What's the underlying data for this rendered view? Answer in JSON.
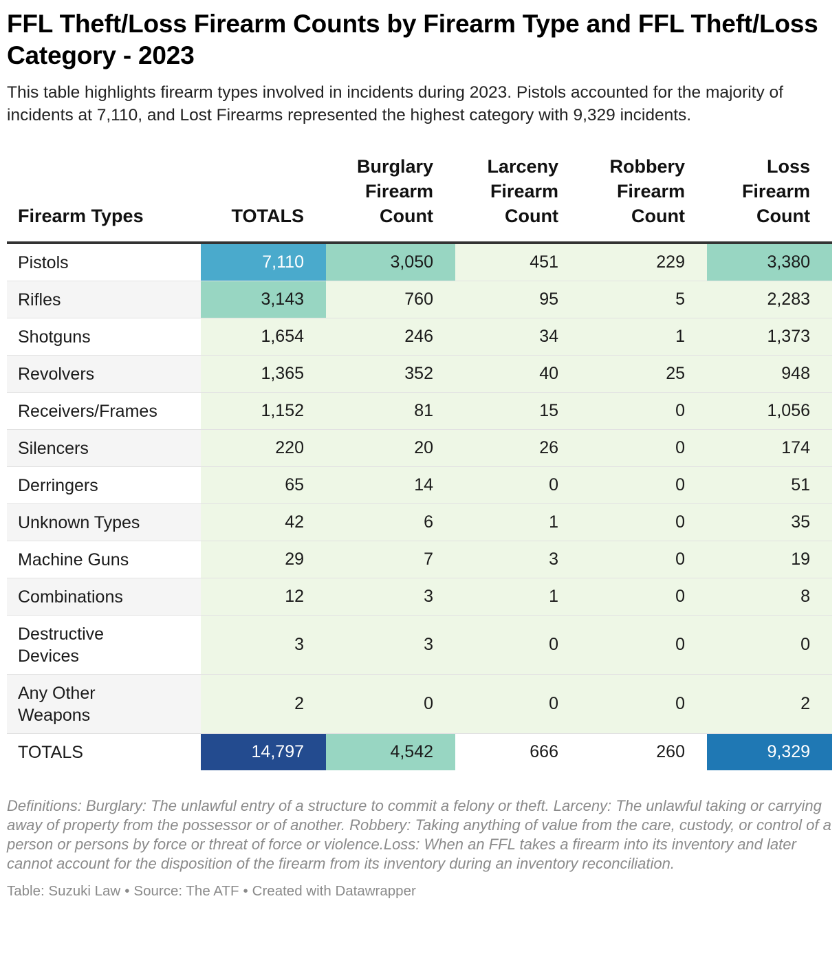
{
  "title": "FFL Theft/Loss Firearm Counts by Firearm Type and FFL Theft/Loss Category - 2023",
  "subtitle": "This table highlights firearm types involved in incidents during 2023. Pistols accounted for the majority of incidents at 7,110, and Lost Firearms represented the highest category with 9,329 incidents.",
  "chart_data": {
    "type": "table",
    "columns": [
      "Firearm Types",
      "TOTALS",
      "Burglary Firearm Count",
      "Larceny Firearm Count",
      "Robbery Firearm Count",
      "Loss Firearm Count"
    ],
    "rows": [
      [
        "Pistols",
        "7,110",
        "3,050",
        "451",
        "229",
        "3,380"
      ],
      [
        "Rifles",
        "3,143",
        "760",
        "95",
        "5",
        "2,283"
      ],
      [
        "Shotguns",
        "1,654",
        "246",
        "34",
        "1",
        "1,373"
      ],
      [
        "Revolvers",
        "1,365",
        "352",
        "40",
        "25",
        "948"
      ],
      [
        "Receivers/Frames",
        "1,152",
        "81",
        "15",
        "0",
        "1,056"
      ],
      [
        "Silencers",
        "220",
        "20",
        "26",
        "0",
        "174"
      ],
      [
        "Derringers",
        "65",
        "14",
        "0",
        "0",
        "51"
      ],
      [
        "Unknown Types",
        "42",
        "6",
        "1",
        "0",
        "35"
      ],
      [
        "Machine Guns",
        "29",
        "7",
        "3",
        "0",
        "19"
      ],
      [
        "Combinations",
        "12",
        "3",
        "1",
        "0",
        "8"
      ],
      [
        "Destructive Devices",
        "3",
        "3",
        "0",
        "0",
        "0"
      ],
      [
        "Any Other Weapons",
        "2",
        "0",
        "0",
        "0",
        "2"
      ],
      [
        "TOTALS",
        "14,797",
        "4,542",
        "666",
        "260",
        "9,329"
      ]
    ],
    "color_scale": {
      "low": "#eef7e6",
      "mid": "#98d6c2",
      "high": "#4aaacc",
      "higher": "#1f78b4",
      "max": "#234b8f"
    }
  },
  "notes": "Definitions: Burglary: The unlawful entry of a structure to commit a felony or theft. Larceny: The unlawful taking or carrying away of property from the possessor or of another. Robbery: Taking anything of value from the care, custody, or control of a person or persons by force or threat of force or violence.Loss: When an FFL takes a firearm into its inventory and later cannot account for the disposition of the firearm from its inventory during an inventory reconciliation.",
  "footer": {
    "table_by": "Table: Suzuki Law",
    "source": "Source: The ATF",
    "created": "Created with Datawrapper",
    "separator": "•"
  }
}
